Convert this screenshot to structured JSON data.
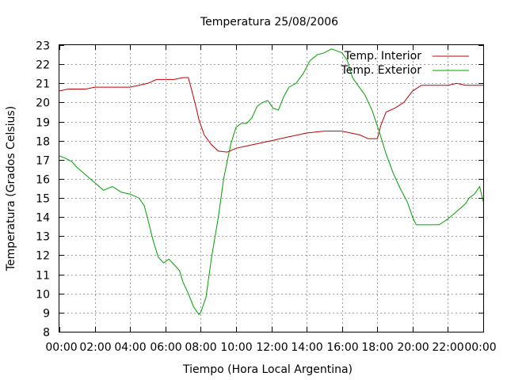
{
  "chart_data": {
    "type": "line",
    "title": "Temperatura 25/08/2006",
    "xlabel": "Tiempo (Hora Local Argentina)",
    "ylabel": "Temperatura (Grados Celsius)",
    "xlim": [
      0,
      24
    ],
    "ylim": [
      8,
      23
    ],
    "x_ticks": [
      "00:00",
      "02:00",
      "04:00",
      "06:00",
      "08:00",
      "10:00",
      "12:00",
      "14:00",
      "16:00",
      "18:00",
      "20:00",
      "22:00",
      "00:00"
    ],
    "y_ticks": [
      "8",
      "9",
      "10",
      "11",
      "12",
      "13",
      "14",
      "15",
      "16",
      "17",
      "18",
      "19",
      "20",
      "21",
      "22",
      "23"
    ],
    "grid": true,
    "legend_position": "top-right",
    "series": [
      {
        "name": "Temp. Interior",
        "color": "#c00000",
        "x": [
          0,
          0.5,
          1,
          1.5,
          2,
          3,
          4,
          4.5,
          5,
          5.5,
          6,
          6.5,
          7,
          7.3,
          7.5,
          7.7,
          7.9,
          8.2,
          8.6,
          9,
          9.5,
          10,
          10.5,
          11,
          12,
          13,
          14,
          15,
          16,
          17,
          17.5,
          18,
          18.2,
          18.5,
          19,
          19.5,
          20,
          20.5,
          21,
          22,
          22.5,
          23,
          24
        ],
        "y": [
          20.6,
          20.7,
          20.7,
          20.7,
          20.8,
          20.8,
          20.8,
          20.9,
          21.0,
          21.2,
          21.2,
          21.2,
          21.3,
          21.3,
          20.6,
          19.9,
          19.1,
          18.3,
          17.8,
          17.45,
          17.4,
          17.6,
          17.7,
          17.8,
          18.0,
          18.2,
          18.4,
          18.5,
          18.5,
          18.3,
          18.1,
          18.1,
          18.8,
          19.5,
          19.7,
          20.0,
          20.6,
          20.9,
          20.9,
          20.9,
          21.0,
          20.9,
          20.9
        ]
      },
      {
        "name": "Temp. Exterior",
        "color": "#00a000",
        "x": [
          0,
          0.3,
          0.7,
          1,
          1.5,
          2,
          2.5,
          3,
          3.5,
          4,
          4.5,
          4.8,
          5,
          5.3,
          5.6,
          5.9,
          6.2,
          6.5,
          6.8,
          7.0,
          7.3,
          7.6,
          7.9,
          8.0,
          8.3,
          8.6,
          9.0,
          9.3,
          9.7,
          10.0,
          10.3,
          10.6,
          10.9,
          11.2,
          11.5,
          11.8,
          12.1,
          12.4,
          12.7,
          13.0,
          13.4,
          13.8,
          14.2,
          14.6,
          15.0,
          15.4,
          15.7,
          16.0,
          16.3,
          16.6,
          16.9,
          17.3,
          17.7,
          18.1,
          18.5,
          18.9,
          19.3,
          19.7,
          20.0,
          20.2,
          20.5,
          21.0,
          21.5,
          22.0,
          22.5,
          23.0,
          23.2,
          23.5,
          23.8,
          24.0
        ],
        "y": [
          17.2,
          17.1,
          16.9,
          16.6,
          16.2,
          15.8,
          15.4,
          15.6,
          15.3,
          15.2,
          15.0,
          14.6,
          13.9,
          12.8,
          11.9,
          11.6,
          11.8,
          11.5,
          11.2,
          10.6,
          10.0,
          9.3,
          8.9,
          9.0,
          9.8,
          11.8,
          14.0,
          16.0,
          17.8,
          18.7,
          18.9,
          18.9,
          19.2,
          19.8,
          20.0,
          20.1,
          19.7,
          19.6,
          20.3,
          20.8,
          21.0,
          21.5,
          22.2,
          22.5,
          22.6,
          22.8,
          22.7,
          22.6,
          22.2,
          21.3,
          20.9,
          20.4,
          19.6,
          18.5,
          17.3,
          16.3,
          15.5,
          14.8,
          14.0,
          13.6,
          13.6,
          13.6,
          13.6,
          13.9,
          14.3,
          14.7,
          15.0,
          15.2,
          15.6,
          14.8
        ]
      }
    ]
  }
}
